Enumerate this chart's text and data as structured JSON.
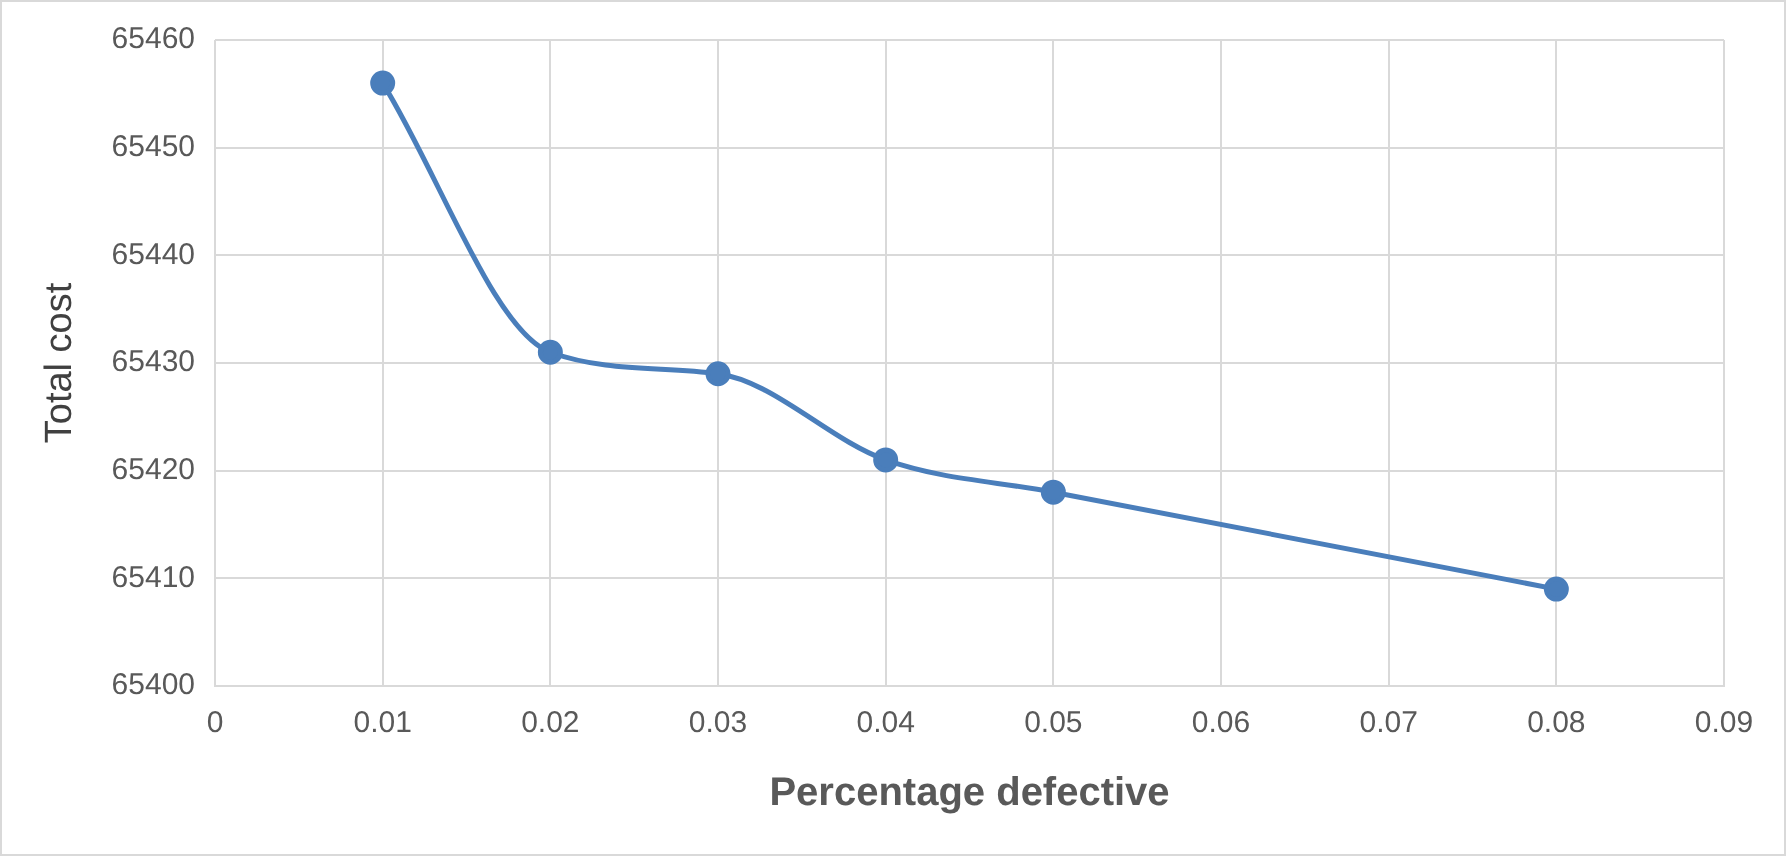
{
  "chart_data": {
    "type": "line",
    "xlabel": "Percentage defective",
    "ylabel": "Total cost",
    "x": [
      0.01,
      0.02,
      0.03,
      0.04,
      0.05,
      0.08
    ],
    "series": [
      {
        "color": "#4a7ebb",
        "values": [
          65456,
          65431,
          65429,
          65421,
          65418,
          65409
        ]
      }
    ],
    "xlim": [
      0,
      0.09
    ],
    "xticks": [
      0,
      0.01,
      0.02,
      0.03,
      0.04,
      0.05,
      0.06,
      0.07,
      0.08,
      0.09
    ],
    "ylim": [
      65400,
      65460
    ],
    "yticks": [
      65400,
      65410,
      65420,
      65430,
      65440,
      65450,
      65460
    ],
    "grid": true,
    "marker": "circle",
    "line_style": "solid"
  }
}
